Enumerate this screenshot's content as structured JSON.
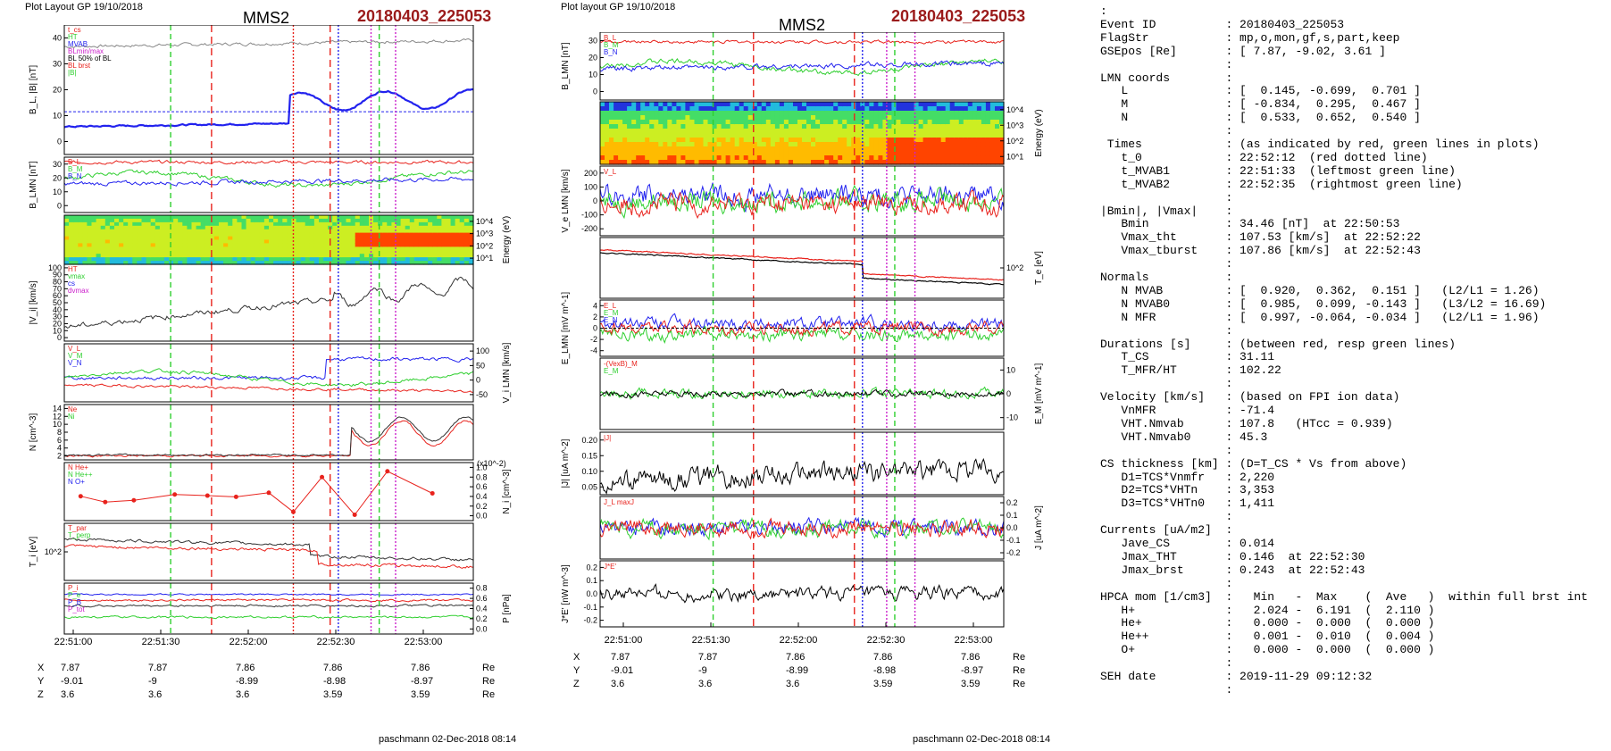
{
  "left": {
    "header": "Plot Layout GP 19/10/2018",
    "sat": "MMS2",
    "event": "20180403_225053",
    "footer": "paschmann 02-Dec-2018 08:14",
    "time_ticks": [
      "22:51:00",
      "22:51:30",
      "22:52:00",
      "22:52:30",
      "22:53:00"
    ],
    "coords": {
      "labels": [
        "X",
        "Y",
        "Z"
      ],
      "unit": "Re",
      "X": [
        "7.87",
        "7.87",
        "7.86",
        "7.86",
        "7.86"
      ],
      "Y": [
        "-9.01",
        "-9",
        "-8.99",
        "-8.98",
        "-8.97"
      ],
      "Z": [
        "3.6",
        "3.6",
        "3.6",
        "3.59",
        "3.59"
      ]
    },
    "panels": [
      {
        "ylabel": "B_L, |B| [nT]",
        "ticks": [
          "0",
          "10",
          "20",
          "30",
          "40"
        ],
        "legend": [
          "t_cs",
          "HT",
          "MVAB",
          "BLmin/max",
          "BL 50% of BL",
          "BL brst",
          "|B|"
        ]
      },
      {
        "ylabel": "B_LMN [nT]",
        "ticks": [
          "0",
          "10",
          "20",
          "30"
        ],
        "legend": [
          "B_L",
          "B_M",
          "B_N"
        ]
      },
      {
        "ylabel": "Energy (eV)",
        "ticks": [
          "10^1",
          "10^2",
          "10^3",
          "10^4"
        ]
      },
      {
        "ylabel": "|V_i| [km/s]",
        "ticks": [
          "0",
          "10",
          "20",
          "30",
          "40",
          "50",
          "60",
          "70",
          "80",
          "90",
          "100"
        ],
        "legend": [
          "HT",
          "vmax",
          "cs",
          "dvmax"
        ]
      },
      {
        "ylabel": "V_i LMN [km/s]",
        "ticks": [
          "-50",
          "0",
          "50",
          "100"
        ],
        "legend": [
          "V_L",
          "V_M",
          "V_N"
        ]
      },
      {
        "ylabel": "N [cm^-3]",
        "ticks": [
          "2",
          "4",
          "6",
          "8",
          "10",
          "12",
          "14"
        ],
        "legend": [
          "Ne",
          "Ni"
        ]
      },
      {
        "ylabel": "N_i [cm^-3]",
        "ticks": [
          "0.0",
          "0.2",
          "0.4",
          "0.6",
          "0.8",
          "1.0"
        ],
        "scale_note": "(x10^-2)",
        "legend": [
          "N He+",
          "N He++",
          "N O+"
        ]
      },
      {
        "ylabel": "T_i [eV]",
        "ticks": [
          "10^2"
        ],
        "legend": [
          "T_par",
          "T_perp"
        ]
      },
      {
        "ylabel": "P [nPa]",
        "ticks": [
          "0.0",
          "0.2",
          "0.4",
          "0.6",
          "0.8"
        ],
        "legend": [
          "P_i",
          "P_e",
          "P_B",
          "P_tot"
        ]
      }
    ]
  },
  "middle": {
    "header": "Plot layout GP 19/10/2018",
    "sat": "MMS2",
    "event": "20180403_225053",
    "footer": "paschmann 02-Dec-2018 08:14",
    "time_ticks": [
      "22:51:00",
      "22:51:30",
      "22:52:00",
      "22:52:30",
      "22:53:00"
    ],
    "coords": {
      "labels": [
        "X",
        "Y",
        "Z"
      ],
      "unit": "Re",
      "X": [
        "7.87",
        "7.87",
        "7.86",
        "7.86",
        "7.86"
      ],
      "Y": [
        "-9.01",
        "-9",
        "-8.99",
        "-8.98",
        "-8.97"
      ],
      "Z": [
        "3.6",
        "3.6",
        "3.6",
        "3.59",
        "3.59"
      ]
    },
    "panels": [
      {
        "ylabel": "B_LMN [nT]",
        "ticks": [
          "0",
          "10",
          "20",
          "30"
        ],
        "legend": [
          "B_L",
          "B_M",
          "B_N"
        ]
      },
      {
        "ylabel": "Energy (eV)",
        "ticks": [
          "10^1",
          "10^2",
          "10^3",
          "10^4"
        ]
      },
      {
        "ylabel": "V_e LMN [km/s]",
        "ticks": [
          "-200",
          "-100",
          "0",
          "100",
          "200"
        ],
        "legend": [
          "V_L"
        ]
      },
      {
        "ylabel": "T_e [eV]",
        "ticks": [
          "10^2"
        ]
      },
      {
        "ylabel": "E_LMN [mV m^-1]",
        "ticks": [
          "-4",
          "-2",
          "0",
          "2",
          "4"
        ],
        "legend": [
          "E_L",
          "E_M",
          "E_N"
        ]
      },
      {
        "ylabel": "E_M [mV m^-1]",
        "ticks": [
          "-10",
          "0",
          "10"
        ],
        "legend": [
          "-(VexB)_M",
          "E_M"
        ]
      },
      {
        "ylabel": "|J| [uA m^-2]",
        "ticks": [
          "0.05",
          "0.10",
          "0.15",
          "0.20"
        ],
        "legend": [
          "|J|"
        ]
      },
      {
        "ylabel": "J [uA m^-2]",
        "ticks": [
          "-0.2",
          "-0.1",
          "0.0",
          "0.1",
          "0.2"
        ],
        "legend": [
          "J_L maxJ"
        ]
      },
      {
        "ylabel": "J*E' [nW m^-3]",
        "ticks": [
          "-0.2",
          "-0.1",
          "0.0",
          "0.1",
          "0.2"
        ],
        "legend": [
          "J*E'"
        ]
      }
    ]
  },
  "colors": {
    "red": "#e8231d",
    "green": "#2fcf2f",
    "blue": "#2222ee",
    "magenta": "#cc22cc",
    "black": "#000000",
    "darkred": "#9b1b1b"
  },
  "chart_data": [
    {
      "type": "line",
      "title": "",
      "xlabel": "",
      "ylabel": "B_L, |B| [nT]",
      "ylim": [
        0,
        42
      ],
      "x": [
        "22:50:50",
        "22:51:30",
        "22:52:00",
        "22:52:20",
        "22:52:40",
        "22:53:00",
        "22:53:10"
      ],
      "series": [
        {
          "name": "|B|",
          "values": [
            35,
            36,
            35,
            37,
            38,
            37,
            38
          ]
        },
        {
          "name": "BL brst",
          "values": [
            9,
            11,
            10,
            17,
            15,
            13,
            16
          ]
        }
      ]
    },
    {
      "type": "scatter",
      "title": "",
      "ylabel": "N_i [cm^-3] (x10^-2)",
      "ylim": [
        0,
        1.0
      ],
      "x": [
        "22:50:55",
        "22:51:05",
        "22:51:15",
        "22:51:30",
        "22:51:45",
        "22:51:55",
        "22:52:10",
        "22:52:20",
        "22:52:30",
        "22:52:40",
        "22:52:50",
        "22:53:05"
      ],
      "series": [
        {
          "name": "N He++",
          "values": [
            0.42,
            0.32,
            0.35,
            0.45,
            0.43,
            0.41,
            0.48,
            0.15,
            0.75,
            0.1,
            0.85,
            0.47
          ]
        }
      ]
    }
  ],
  "right_panel": [
    {
      "k": ":",
      "v": ""
    },
    {
      "k": "Event ID",
      "v": ": 20180403_225053"
    },
    {
      "k": "FlagStr",
      "v": ": mp,o,mon,gf,s,part,keep"
    },
    {
      "k": "GSEpos [Re]",
      "v": ": [ 7.87, -9.02, 3.61 ]"
    },
    {
      "k": "",
      "v": ":"
    },
    {
      "k": "LMN coords",
      "v": ":"
    },
    {
      "k": "   L",
      "v": ": [  0.145, -0.699,  0.701 ]"
    },
    {
      "k": "   M",
      "v": ": [ -0.834,  0.295,  0.467 ]"
    },
    {
      "k": "   N",
      "v": ": [  0.533,  0.652,  0.540 ]"
    },
    {
      "k": "",
      "v": ":"
    },
    {
      "k": " Times",
      "v": ": (as indicated by red, green lines in plots)"
    },
    {
      "k": "   t_0",
      "v": ": 22:52:12  (red dotted line)"
    },
    {
      "k": "   t_MVAB1",
      "v": ": 22:51:33  (leftmost green line)"
    },
    {
      "k": "   t_MVAB2",
      "v": ": 22:52:35  (rightmost green line)"
    },
    {
      "k": "",
      "v": ":"
    },
    {
      "k": "|Bmin|, |Vmax|",
      "v": ":"
    },
    {
      "k": "   Bmin",
      "v": ": 34.46 [nT]  at 22:50:53"
    },
    {
      "k": "   Vmax_tht",
      "v": ": 107.53 [km/s]  at 22:52:22"
    },
    {
      "k": "   Vmax_tburst",
      "v": ": 107.86 [km/s]  at 22:52:43"
    },
    {
      "k": "",
      "v": ":"
    },
    {
      "k": "Normals",
      "v": ":"
    },
    {
      "k": "   N MVAB",
      "v": ": [  0.920,  0.362,  0.151 ]   (L2/L1 = 1.26)"
    },
    {
      "k": "   N MVAB0",
      "v": ": [  0.985,  0.099, -0.143 ]   (L3/L2 = 16.69)"
    },
    {
      "k": "   N MFR",
      "v": ": [  0.997, -0.064, -0.034 ]   (L2/L1 = 1.96)"
    },
    {
      "k": "",
      "v": ":"
    },
    {
      "k": "Durations [s]",
      "v": ": (between red, resp green lines)"
    },
    {
      "k": "   T_CS",
      "v": ": 31.11"
    },
    {
      "k": "   T_MFR/HT",
      "v": ": 102.22"
    },
    {
      "k": "",
      "v": ":"
    },
    {
      "k": "Velocity [km/s]",
      "v": ": (based on FPI ion data)"
    },
    {
      "k": "   VnMFR",
      "v": ": -71.4"
    },
    {
      "k": "   VHT.Nmvab",
      "v": ": 107.8   (HTcc = 0.939)"
    },
    {
      "k": "   VHT.Nmvab0",
      "v": ": 45.3"
    },
    {
      "k": "",
      "v": ":"
    },
    {
      "k": "CS thickness [km]",
      "v": ": (D=T_CS * Vs from above)"
    },
    {
      "k": "   D1=TCS*Vnmfr",
      "v": ": 2,220"
    },
    {
      "k": "   D2=TCS*VHTn",
      "v": ": 3,353"
    },
    {
      "k": "   D3=TCS*VHTn0",
      "v": ": 1,411"
    },
    {
      "k": "",
      "v": ":"
    },
    {
      "k": "Currents [uA/m2]",
      "v": ":"
    },
    {
      "k": "   Jave_CS",
      "v": ": 0.014"
    },
    {
      "k": "   Jmax_THT",
      "v": ": 0.146  at 22:52:30"
    },
    {
      "k": "   Jmax_brst",
      "v": ": 0.243  at 22:52:43"
    },
    {
      "k": "",
      "v": ":"
    },
    {
      "k": "HPCA mom [1/cm3]",
      "v": ":   Min   -  Max    (  Ave   )  within full brst int"
    },
    {
      "k": "   H+",
      "v": ":   2.024 -  6.191  (  2.110 )"
    },
    {
      "k": "   He+",
      "v": ":   0.000 -  0.000  (  0.000 )"
    },
    {
      "k": "   He++",
      "v": ":   0.001 -  0.010  (  0.004 )"
    },
    {
      "k": "   O+",
      "v": ":   0.000 -  0.000  (  0.000 )"
    },
    {
      "k": "",
      "v": ":"
    },
    {
      "k": "SEH date",
      "v": ": 2019-11-29 09:12:32"
    },
    {
      "k": "",
      "v": ":"
    }
  ]
}
